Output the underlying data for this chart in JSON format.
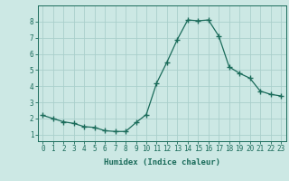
{
  "x": [
    0,
    1,
    2,
    3,
    4,
    5,
    6,
    7,
    8,
    9,
    10,
    11,
    12,
    13,
    14,
    15,
    16,
    17,
    18,
    19,
    20,
    21,
    22,
    23
  ],
  "y": [
    2.2,
    2.0,
    1.8,
    1.7,
    1.5,
    1.45,
    1.25,
    1.2,
    1.2,
    1.75,
    2.25,
    4.2,
    5.5,
    6.9,
    8.1,
    8.05,
    8.1,
    7.1,
    5.2,
    4.8,
    4.5,
    3.7,
    3.5,
    3.4
  ],
  "line_color": "#1a6b5a",
  "marker": "+",
  "markersize": 4,
  "linewidth": 0.9,
  "bg_color": "#cce8e4",
  "grid_color": "#aacfcb",
  "xlabel": "Humidex (Indice chaleur)",
  "xlim": [
    -0.5,
    23.5
  ],
  "ylim": [
    0.6,
    9.0
  ],
  "xticks": [
    0,
    1,
    2,
    3,
    4,
    5,
    6,
    7,
    8,
    9,
    10,
    11,
    12,
    13,
    14,
    15,
    16,
    17,
    18,
    19,
    20,
    21,
    22,
    23
  ],
  "yticks": [
    1,
    2,
    3,
    4,
    5,
    6,
    7,
    8
  ],
  "xlabel_fontsize": 6.5,
  "tick_fontsize": 5.5,
  "axis_color": "#1a6b5a"
}
